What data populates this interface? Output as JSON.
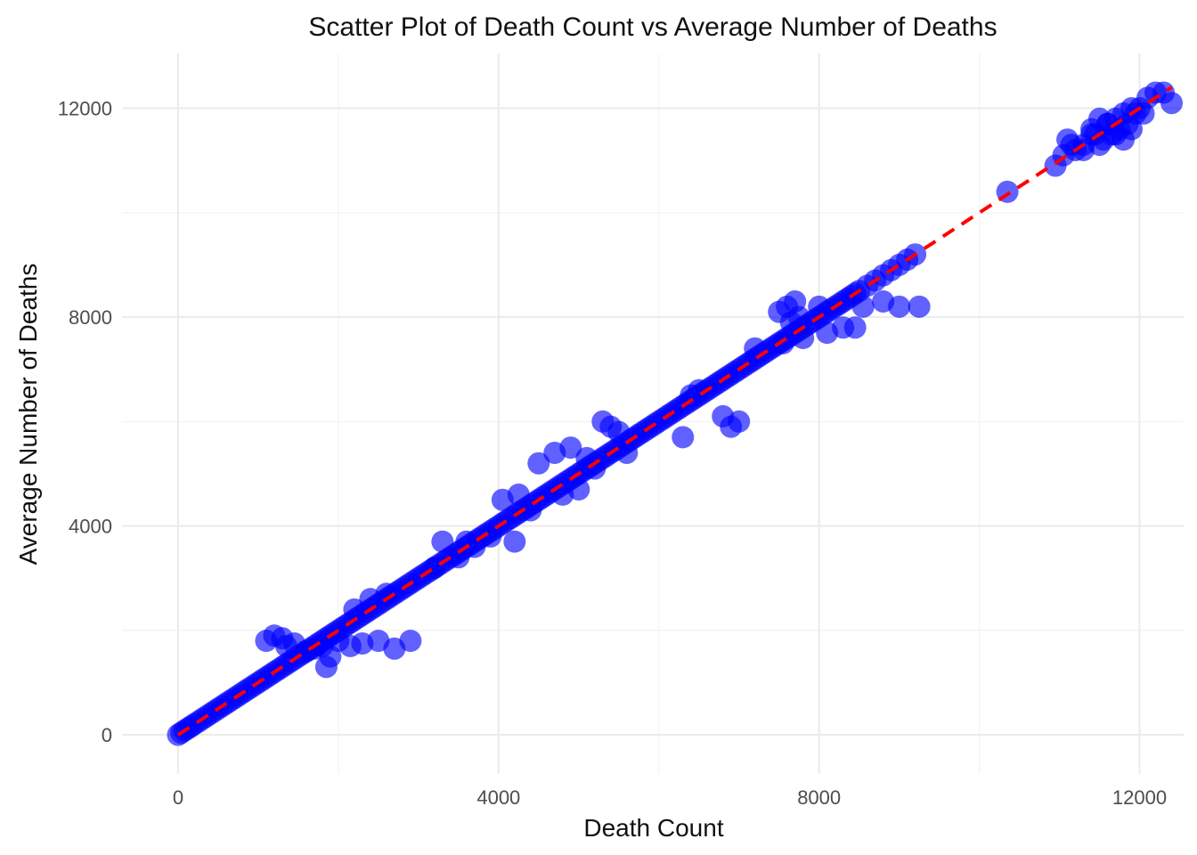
{
  "chart_data": {
    "type": "scatter",
    "title": "Scatter Plot of Death Count vs Average Number of Deaths",
    "xlabel": "Death Count",
    "ylabel": "Average Number of Deaths",
    "xlim": [
      -700,
      12550
    ],
    "ylim": [
      -750,
      13050
    ],
    "x_ticks": [
      0,
      4000,
      8000,
      12000
    ],
    "y_ticks": [
      0,
      4000,
      8000,
      12000
    ],
    "x_tick_labels": [
      "0",
      "4000",
      "8000",
      "12000"
    ],
    "y_tick_labels": [
      "0",
      "4000",
      "8000",
      "12000"
    ],
    "grid": true,
    "legend": "none",
    "point_color": "#0000ff",
    "trend_line": {
      "style": "dashed",
      "color": "#ff0000",
      "x": [
        0,
        12400
      ],
      "y": [
        0,
        12400
      ]
    },
    "series": [
      {
        "x": [
          0,
          40,
          80,
          120,
          160,
          200,
          250,
          300,
          350,
          400,
          450,
          500,
          550,
          600,
          650,
          700,
          750,
          800,
          850,
          900,
          950,
          1000,
          1050,
          1100,
          1150,
          1200,
          1250,
          1300,
          1350,
          1400,
          1450,
          1500,
          1550,
          1600,
          1650,
          1700,
          1750,
          1800,
          1850,
          1900,
          1950,
          2000,
          2050,
          2100,
          2150,
          2200,
          2250,
          2300,
          2350,
          2400,
          2450,
          2500,
          2550,
          2600,
          2650,
          2700,
          2750,
          2800,
          2850,
          2900,
          2950,
          3000,
          3050,
          3100,
          3150,
          3200,
          3250,
          3300,
          3350,
          3400,
          3450,
          3500,
          3550,
          3600,
          3650,
          3700,
          3750,
          3800,
          3850,
          3900,
          3950,
          4000,
          4050,
          4100,
          4150,
          4200,
          4250,
          4300,
          4350,
          4400,
          4450,
          4500,
          4550,
          4600,
          4650,
          4700,
          4750,
          4800,
          4850,
          4900,
          4950,
          5000,
          5050,
          5100,
          5150,
          5200,
          5250,
          5300,
          5350,
          5400,
          5450,
          5500,
          5550,
          5600,
          5650,
          5700,
          5750,
          5800,
          5850,
          5900,
          5950,
          6000,
          6050,
          6100,
          6150,
          6200,
          6250,
          6300,
          6350,
          6400,
          6450,
          6500,
          6550,
          6600,
          6650,
          6700,
          6750,
          6800,
          6850,
          6900,
          6950,
          7000,
          7050,
          7100,
          7150,
          7200,
          7250,
          7300,
          7350,
          7400,
          7450,
          7500,
          7550,
          7600,
          7650,
          7700,
          7750,
          7800,
          7850,
          7900,
          7950,
          8000,
          8050,
          8100,
          8150,
          8200,
          8250,
          8300,
          8350,
          8400,
          8450,
          8500,
          8600,
          8700,
          8800,
          8900,
          9000,
          9100,
          9200,
          1100,
          1200,
          1300,
          1350,
          1450,
          1600,
          1700,
          1800,
          1900,
          1850,
          2000,
          2150,
          2300,
          2500,
          2700,
          2900,
          2200,
          2400,
          2600,
          3300,
          3500,
          3700,
          3900,
          4050,
          4250,
          4400,
          3200,
          3600,
          4200,
          4500,
          4700,
          4900,
          5100,
          5300,
          5500,
          4800,
          5000,
          5200,
          5400,
          5600,
          6500,
          6800,
          7000,
          7500,
          7600,
          7700,
          7800,
          7200,
          7550,
          7650,
          7750,
          8000,
          8300,
          8450,
          8100,
          8550,
          8800,
          9000,
          9250,
          6300,
          6900,
          6400,
          10350,
          10950,
          11050,
          11100,
          11200,
          11300,
          11400,
          11450,
          11500,
          11550,
          11600,
          11650,
          11700,
          11750,
          11800,
          11850,
          11900,
          11950,
          12000,
          12100,
          12200,
          12300,
          12400,
          11300,
          11500,
          11700,
          11900,
          12050,
          11400,
          11600,
          11150,
          11800
        ],
        "y": [
          0,
          40,
          80,
          120,
          160,
          200,
          250,
          300,
          350,
          400,
          450,
          500,
          550,
          600,
          650,
          700,
          750,
          800,
          850,
          900,
          950,
          1000,
          1050,
          1100,
          1150,
          1200,
          1250,
          1300,
          1350,
          1400,
          1450,
          1500,
          1550,
          1600,
          1650,
          1700,
          1750,
          1800,
          1850,
          1900,
          1950,
          2000,
          2050,
          2100,
          2150,
          2200,
          2250,
          2300,
          2350,
          2400,
          2450,
          2500,
          2550,
          2600,
          2650,
          2700,
          2750,
          2800,
          2850,
          2900,
          2950,
          3000,
          3050,
          3100,
          3150,
          3200,
          3250,
          3300,
          3350,
          3400,
          3450,
          3500,
          3550,
          3600,
          3650,
          3700,
          3750,
          3800,
          3850,
          3900,
          3950,
          4000,
          4050,
          4100,
          4150,
          4200,
          4250,
          4300,
          4350,
          4400,
          4450,
          4500,
          4550,
          4600,
          4650,
          4700,
          4750,
          4800,
          4850,
          4900,
          4950,
          5000,
          5050,
          5100,
          5150,
          5200,
          5250,
          5300,
          5350,
          5400,
          5450,
          5500,
          5550,
          5600,
          5650,
          5700,
          5750,
          5800,
          5850,
          5900,
          5950,
          6000,
          6050,
          6100,
          6150,
          6200,
          6250,
          6300,
          6350,
          6400,
          6450,
          6500,
          6550,
          6600,
          6650,
          6700,
          6750,
          6800,
          6850,
          6900,
          6950,
          7000,
          7050,
          7100,
          7150,
          7200,
          7250,
          7300,
          7350,
          7400,
          7450,
          7500,
          7550,
          7600,
          7650,
          7700,
          7750,
          7800,
          7850,
          7900,
          7950,
          8000,
          8050,
          8100,
          8150,
          8200,
          8250,
          8300,
          8350,
          8400,
          8450,
          8500,
          8600,
          8700,
          8800,
          8900,
          9000,
          9100,
          9200,
          1800,
          1900,
          1850,
          1700,
          1750,
          1600,
          1650,
          1700,
          1500,
          1300,
          1800,
          1700,
          1750,
          1800,
          1650,
          1800,
          2400,
          2600,
          2700,
          3700,
          3400,
          3600,
          3800,
          4500,
          4600,
          4300,
          3200,
          3700,
          3700,
          5200,
          5400,
          5500,
          5300,
          6000,
          5800,
          4600,
          4700,
          5100,
          5900,
          5400,
          6600,
          6100,
          6000,
          8100,
          8200,
          8300,
          7600,
          7400,
          7500,
          7900,
          8000,
          8200,
          7800,
          7800,
          7700,
          8200,
          8300,
          8200,
          8200,
          5700,
          5900,
          6500,
          10400,
          10900,
          11100,
          11400,
          11200,
          11300,
          11600,
          11500,
          11800,
          11400,
          11700,
          11500,
          11800,
          11600,
          11900,
          11700,
          12000,
          11900,
          12000,
          12200,
          12300,
          12300,
          12100,
          11200,
          11300,
          11500,
          11600,
          11900,
          11500,
          11700,
          11300,
          11400
        ]
      }
    ]
  }
}
